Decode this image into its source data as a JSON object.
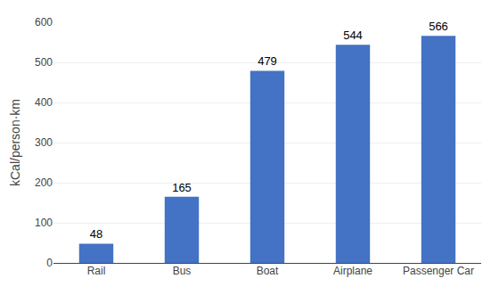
{
  "chart_data": {
    "type": "bar",
    "categories": [
      "Rail",
      "Bus",
      "Boat",
      "Airplane",
      "Passenger Car"
    ],
    "values": [
      48,
      165,
      479,
      544,
      566
    ],
    "color": "#4472C4",
    "ylabel": "kCal/person·km",
    "ylim": [
      0,
      600
    ],
    "yticks": [
      0,
      100,
      200,
      300,
      400,
      500,
      600
    ],
    "grid": true,
    "data_labels": true
  }
}
